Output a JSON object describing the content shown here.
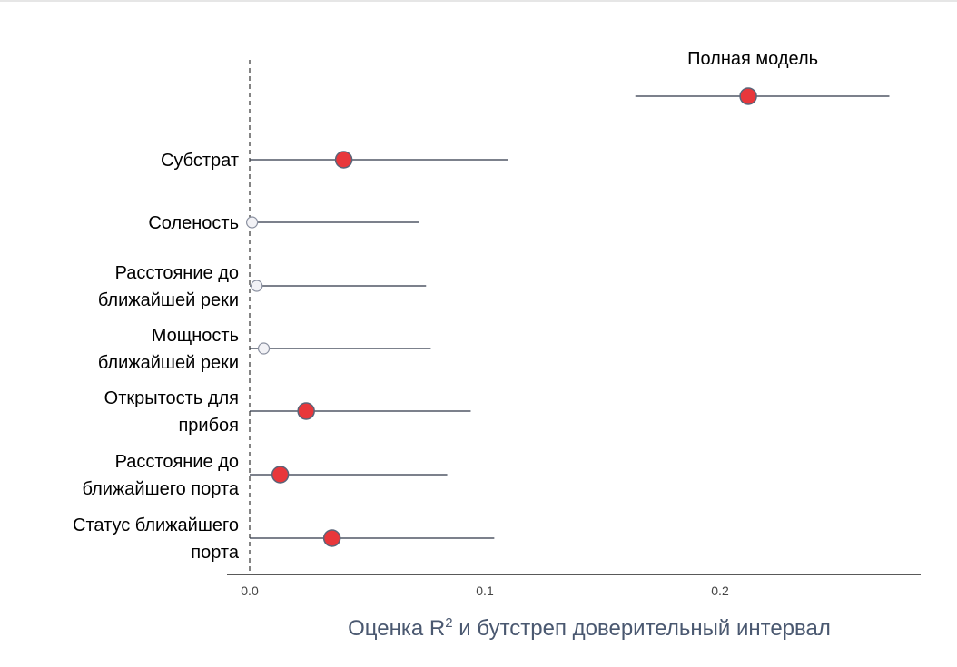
{
  "chart_data": {
    "type": "scatter",
    "title": "",
    "xlabel_main": "Оценка R",
    "xlabel_sup": "2",
    "xlabel_rest": " и бутстреп доверительный интервал",
    "xlim": [
      -0.005,
      0.285
    ],
    "xticks": [
      {
        "value": 0.0,
        "label": "0.0"
      },
      {
        "value": 0.1,
        "label": "0.1"
      },
      {
        "value": 0.2,
        "label": "0.2"
      }
    ],
    "reference_line": 0,
    "points": [
      {
        "label_lines": [
          "Полная модель"
        ],
        "label_position": "above",
        "estimate": 0.212,
        "ci": [
          0.164,
          0.272
        ],
        "significant": true
      },
      {
        "label_lines": [
          "Субстрат"
        ],
        "label_position": "left",
        "estimate": 0.04,
        "ci": [
          0.0,
          0.11
        ],
        "significant": true
      },
      {
        "label_lines": [
          "Соленость"
        ],
        "label_position": "left",
        "estimate": 0.001,
        "ci": [
          0.0,
          0.072
        ],
        "significant": false
      },
      {
        "label_lines": [
          "Расстояние до",
          "ближайшей реки"
        ],
        "label_position": "left",
        "estimate": 0.003,
        "ci": [
          0.0,
          0.075
        ],
        "significant": false
      },
      {
        "label_lines": [
          "Мощность",
          "ближайшей реки"
        ],
        "label_position": "left",
        "estimate": 0.006,
        "ci": [
          0.0,
          0.077
        ],
        "significant": false
      },
      {
        "label_lines": [
          "Открытость для",
          "прибоя"
        ],
        "label_position": "left",
        "estimate": 0.024,
        "ci": [
          0.0,
          0.094
        ],
        "significant": true
      },
      {
        "label_lines": [
          "Расстояние до",
          "ближайшего порта"
        ],
        "label_position": "left",
        "estimate": 0.013,
        "ci": [
          0.0,
          0.084
        ],
        "significant": true
      },
      {
        "label_lines": [
          "Статус ближайшего",
          "порта"
        ],
        "label_position": "left",
        "estimate": 0.035,
        "ci": [
          0.0,
          0.104
        ],
        "significant": true
      }
    ],
    "colors": {
      "significant_fill": "#e8373b",
      "significant_stroke": "#5a6478",
      "nonsignificant_fill": "#f2f2f6",
      "nonsignificant_stroke": "#8a90a0",
      "ci_line": "#2d3648",
      "axis": "#222222"
    }
  }
}
